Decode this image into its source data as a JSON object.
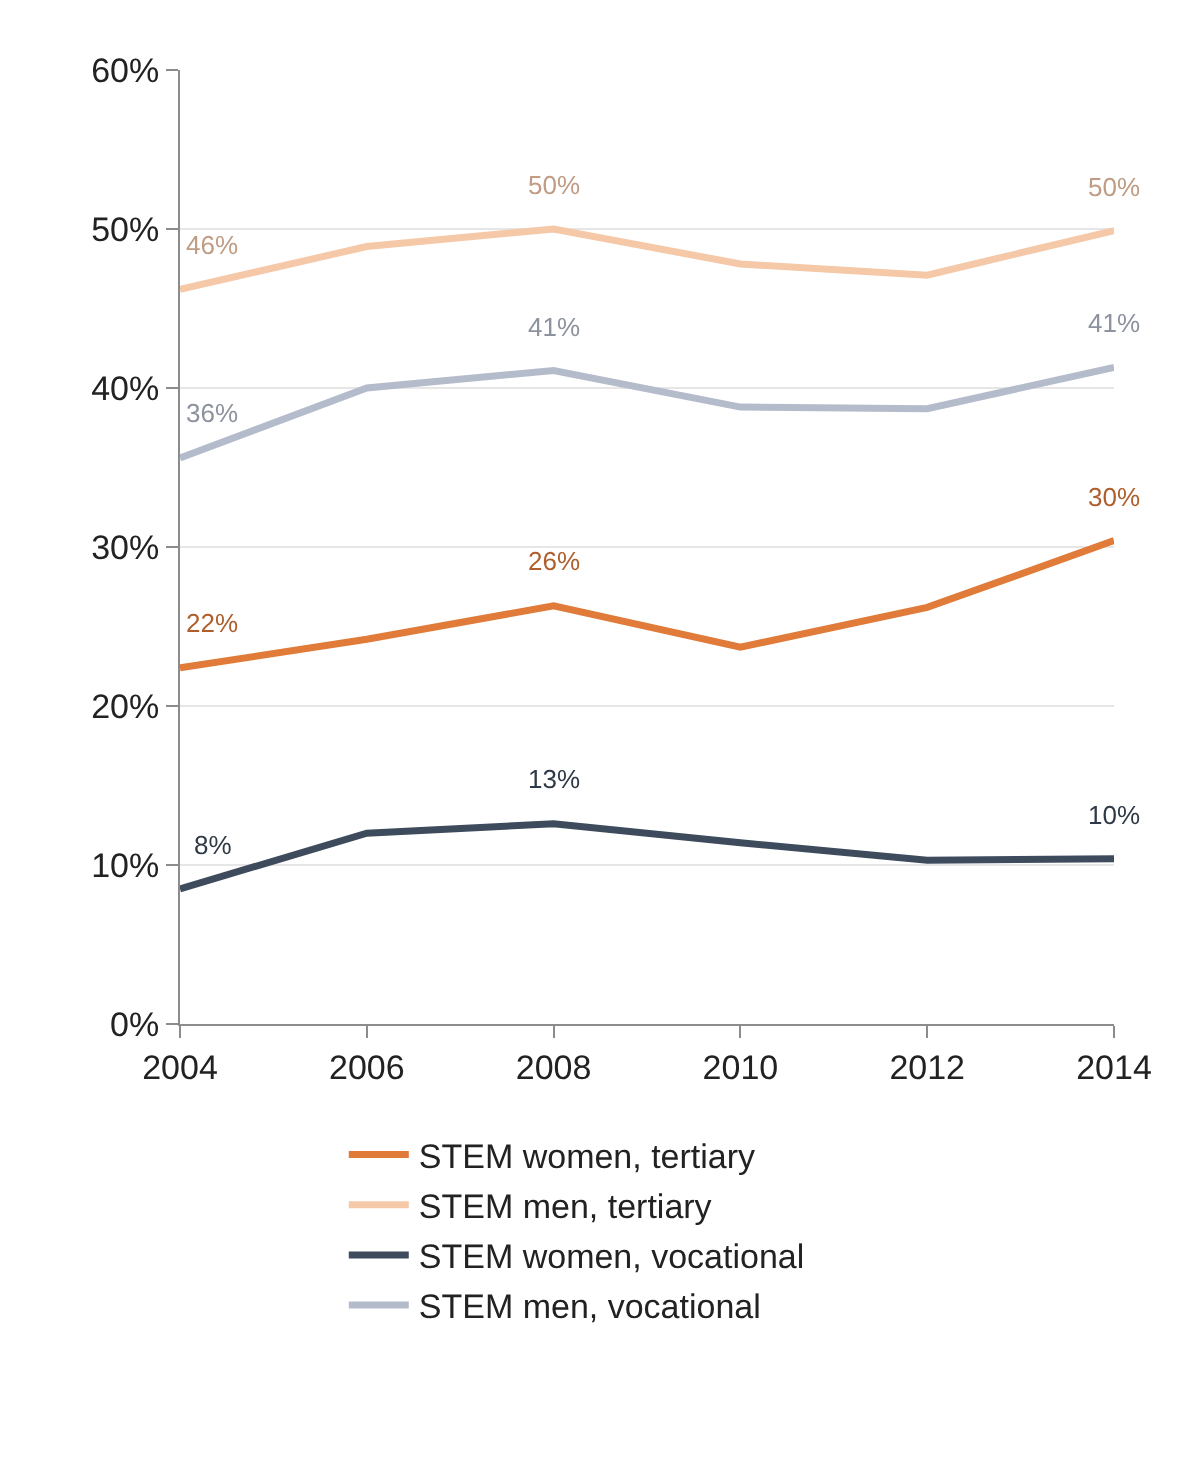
{
  "chart_data": {
    "type": "line",
    "x": [
      2004,
      2006,
      2008,
      2010,
      2012,
      2014
    ],
    "xlim": [
      2004,
      2014
    ],
    "xticks": [
      2004,
      2006,
      2008,
      2010,
      2012,
      2014
    ],
    "ylim": [
      0,
      60
    ],
    "yticks": [
      {
        "value": 0,
        "label": "0%"
      },
      {
        "value": 10,
        "label": "10%"
      },
      {
        "value": 20,
        "label": "20%"
      },
      {
        "value": 30,
        "label": "30%"
      },
      {
        "value": 40,
        "label": "40%"
      },
      {
        "value": 50,
        "label": "50%"
      },
      {
        "value": 60,
        "label": "60%"
      }
    ],
    "grid": "y",
    "legend": "bottom",
    "marker": "none",
    "line_style": "solid",
    "series": [
      {
        "name": "STEM women, tertiary",
        "color": "#e07b39",
        "values": [
          22.4,
          24.2,
          26.3,
          23.7,
          26.2,
          30.4
        ],
        "value_labels": [
          "22%",
          null,
          "26%",
          null,
          null,
          "30%"
        ]
      },
      {
        "name": "STEM men, tertiary",
        "color": "#f5c8a8",
        "values": [
          46.2,
          48.9,
          50.0,
          47.8,
          47.1,
          49.9
        ],
        "value_labels": [
          "46%",
          null,
          "50%",
          null,
          null,
          "50%"
        ]
      },
      {
        "name": "STEM women, vocational",
        "color": "#3d4b5c",
        "values": [
          8.5,
          12.0,
          12.6,
          11.4,
          10.3,
          10.4
        ],
        "value_labels": [
          "8%",
          null,
          "13%",
          null,
          null,
          "10%"
        ]
      },
      {
        "name": "STEM men, vocational",
        "color": "#b4bccb",
        "values": [
          35.6,
          40.0,
          41.1,
          38.8,
          38.7,
          41.3
        ],
        "value_labels": [
          "36%",
          null,
          "41%",
          null,
          null,
          "41%"
        ]
      }
    ]
  }
}
